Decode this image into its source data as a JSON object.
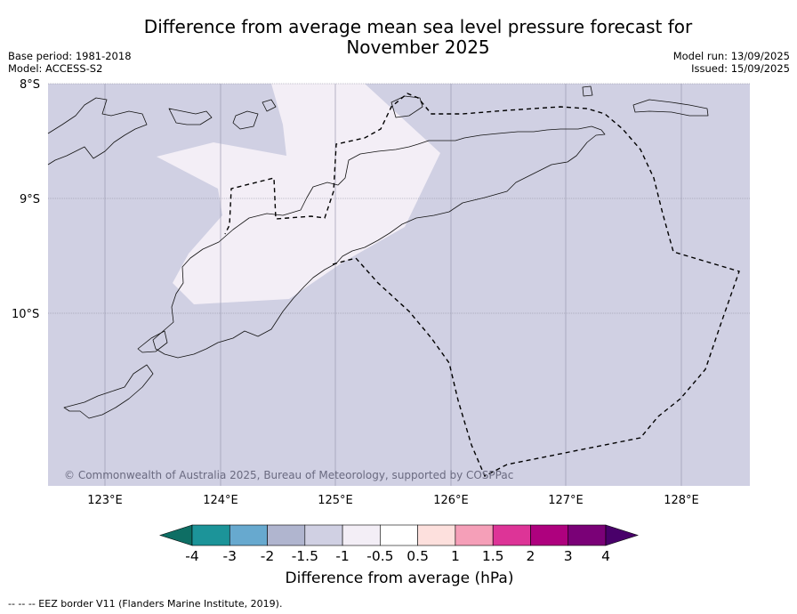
{
  "title_line1": "Difference from average mean sea level pressure forecast for",
  "title_line2": "November 2025",
  "base_period": "Base period: 1981-2018",
  "model": "Model: ACCESS-S2",
  "model_run": "Model run: 13/09/2025",
  "issued": "Issued: 15/09/2025",
  "map": {
    "latitude_labels": [
      "8°S",
      "9°S",
      "10°S"
    ],
    "longitude_labels": [
      "123°E",
      "124°E",
      "125°E",
      "126°E",
      "127°E",
      "128°E"
    ],
    "copyright": "© Commonwealth of Australia 2025, Bureau of Meteorology, supported by COSPPac",
    "background_color": "#d0d0e3",
    "highlight_color": "#f3eef6"
  },
  "legend": {
    "ticks": [
      "-4",
      "-3",
      "-2",
      "-1.5",
      "-1",
      "-0.5",
      "0.5",
      "1",
      "1.5",
      "2",
      "3",
      "4"
    ],
    "colors": [
      "#0e6e64",
      "#1c9499",
      "#67a9cf",
      "#b0b5cf",
      "#d0d0e3",
      "#f3eef6",
      "#ffffff",
      "#fde0dd",
      "#f59fb8",
      "#dd3497",
      "#ae017e",
      "#7a0177",
      "#49006a"
    ],
    "label": "Difference from average (hPa)"
  },
  "footnote": "--  --  -- EEZ border V11 (Flanders Marine Institute, 2019)."
}
